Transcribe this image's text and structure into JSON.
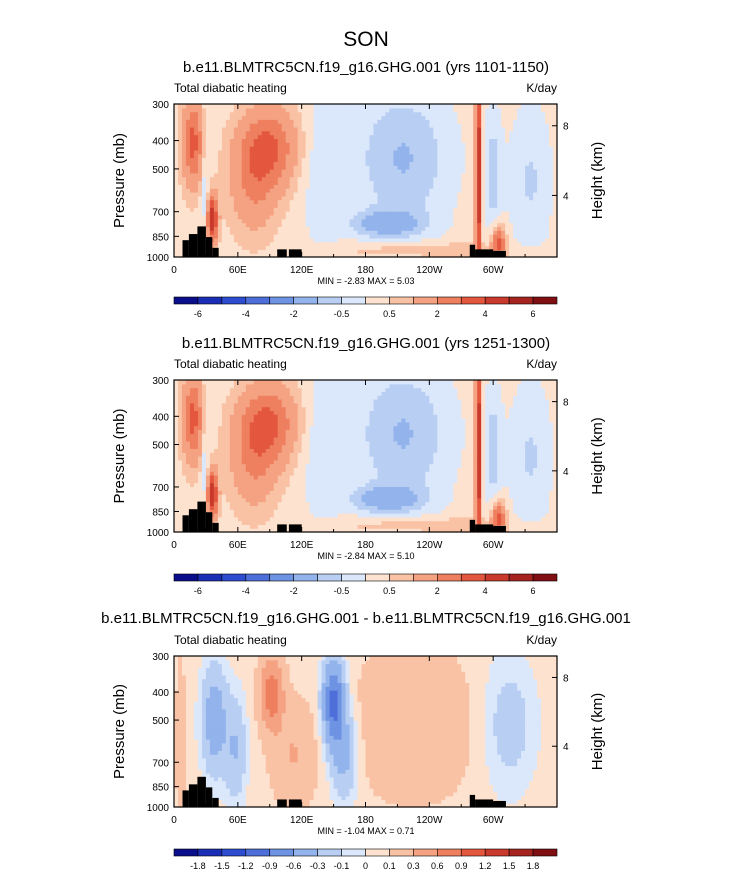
{
  "page_title": "SON",
  "colors": {
    "warm": [
      "#fde3cf",
      "#f9c2a5",
      "#f4a282",
      "#ee7f5f",
      "#e4573f",
      "#c93a2c",
      "#a5241f",
      "#7f0f12"
    ],
    "cool": [
      "#dbe7fb",
      "#b8cff3",
      "#93b3ec",
      "#6f93e3",
      "#4e6fd9",
      "#2e4ccf",
      "#1a2db5",
      "#0a0e8a"
    ],
    "land": "#000000"
  },
  "chart_data": [
    {
      "type": "contour",
      "title": "b.e11.BLMTRC5CN.f19_g16.GHG.001 (yrs 1101-1150)",
      "left_label": "Total diabatic heating",
      "right_label": "K/day",
      "ylabel": "Pressure (mb)",
      "ylabel_right": "Height (km)",
      "x_ticks": [
        {
          "label": "0",
          "lon": 0
        },
        {
          "label": "60E",
          "lon": 60
        },
        {
          "label": "120E",
          "lon": 120
        },
        {
          "label": "180",
          "lon": 180
        },
        {
          "label": "120W",
          "lon": 240
        },
        {
          "label": "60W",
          "lon": 300
        }
      ],
      "y_ticks": [
        {
          "label": "300",
          "p": 300
        },
        {
          "label": "400",
          "p": 400
        },
        {
          "label": "500",
          "p": 500
        },
        {
          "label": "700",
          "p": 700
        },
        {
          "label": "850",
          "p": 850
        },
        {
          "label": "1000",
          "p": 1000
        }
      ],
      "height_ticks": [
        {
          "label": "8",
          "p": 356
        },
        {
          "label": "4",
          "p": 616
        }
      ],
      "xlim": [
        0,
        360
      ],
      "ylim": [
        1000,
        300
      ],
      "minmax": "MIN = -2.83   MAX =  5.03",
      "colorbar_labels": [
        "-6",
        "-4",
        "-2",
        "-0.5",
        "0.5",
        "2",
        "4",
        "6"
      ],
      "levels": [
        -7,
        -6,
        -5,
        -4,
        -3,
        -2,
        -1,
        -0.5,
        0,
        0.5,
        1,
        2,
        3,
        4,
        5,
        6,
        7
      ]
    },
    {
      "type": "contour",
      "title": "b.e11.BLMTRC5CN.f19_g16.GHG.001 (yrs 1251-1300)",
      "left_label": "Total diabatic heating",
      "right_label": "K/day",
      "ylabel": "Pressure (mb)",
      "ylabel_right": "Height (km)",
      "x_ticks": [
        {
          "label": "0",
          "lon": 0
        },
        {
          "label": "60E",
          "lon": 60
        },
        {
          "label": "120E",
          "lon": 120
        },
        {
          "label": "180",
          "lon": 180
        },
        {
          "label": "120W",
          "lon": 240
        },
        {
          "label": "60W",
          "lon": 300
        }
      ],
      "y_ticks": [
        {
          "label": "300",
          "p": 300
        },
        {
          "label": "400",
          "p": 400
        },
        {
          "label": "500",
          "p": 500
        },
        {
          "label": "700",
          "p": 700
        },
        {
          "label": "850",
          "p": 850
        },
        {
          "label": "1000",
          "p": 1000
        }
      ],
      "height_ticks": [
        {
          "label": "8",
          "p": 356
        },
        {
          "label": "4",
          "p": 616
        }
      ],
      "xlim": [
        0,
        360
      ],
      "ylim": [
        1000,
        300
      ],
      "minmax": "MIN = -2.84   MAX =  5.10",
      "colorbar_labels": [
        "-6",
        "-4",
        "-2",
        "-0.5",
        "0.5",
        "2",
        "4",
        "6"
      ],
      "levels": [
        -7,
        -6,
        -5,
        -4,
        -3,
        -2,
        -1,
        -0.5,
        0,
        0.5,
        1,
        2,
        3,
        4,
        5,
        6,
        7
      ]
    },
    {
      "type": "contour",
      "title": "b.e11.BLMTRC5CN.f19_g16.GHG.001 - b.e11.BLMTRC5CN.f19_g16.GHG.001",
      "left_label": "Total diabatic heating",
      "right_label": "K/day",
      "ylabel": "Pressure (mb)",
      "ylabel_right": "Height (km)",
      "x_ticks": [
        {
          "label": "0",
          "lon": 0
        },
        {
          "label": "60E",
          "lon": 60
        },
        {
          "label": "120E",
          "lon": 120
        },
        {
          "label": "180",
          "lon": 180
        },
        {
          "label": "120W",
          "lon": 240
        },
        {
          "label": "60W",
          "lon": 300
        }
      ],
      "y_ticks": [
        {
          "label": "300",
          "p": 300
        },
        {
          "label": "400",
          "p": 400
        },
        {
          "label": "500",
          "p": 500
        },
        {
          "label": "700",
          "p": 700
        },
        {
          "label": "850",
          "p": 850
        },
        {
          "label": "1000",
          "p": 1000
        }
      ],
      "height_ticks": [
        {
          "label": "8",
          "p": 356
        },
        {
          "label": "4",
          "p": 616
        }
      ],
      "xlim": [
        0,
        360
      ],
      "ylim": [
        1000,
        300
      ],
      "minmax": "MIN = -1.04   MAX =  0.71",
      "colorbar_labels": [
        "-1.8",
        "-1.5",
        "-1.2",
        "-0.9",
        "-0.6",
        "-0.3",
        "-0.1",
        "0",
        "0.1",
        "0.3",
        "0.6",
        "0.9",
        "1.2",
        "1.5",
        "1.8"
      ],
      "levels": [
        -2.1,
        -1.8,
        -1.5,
        -1.2,
        -0.9,
        -0.6,
        -0.3,
        -0.1,
        0,
        0.1,
        0.3,
        0.6,
        0.9,
        1.2,
        1.5,
        1.8,
        2.1
      ]
    }
  ]
}
